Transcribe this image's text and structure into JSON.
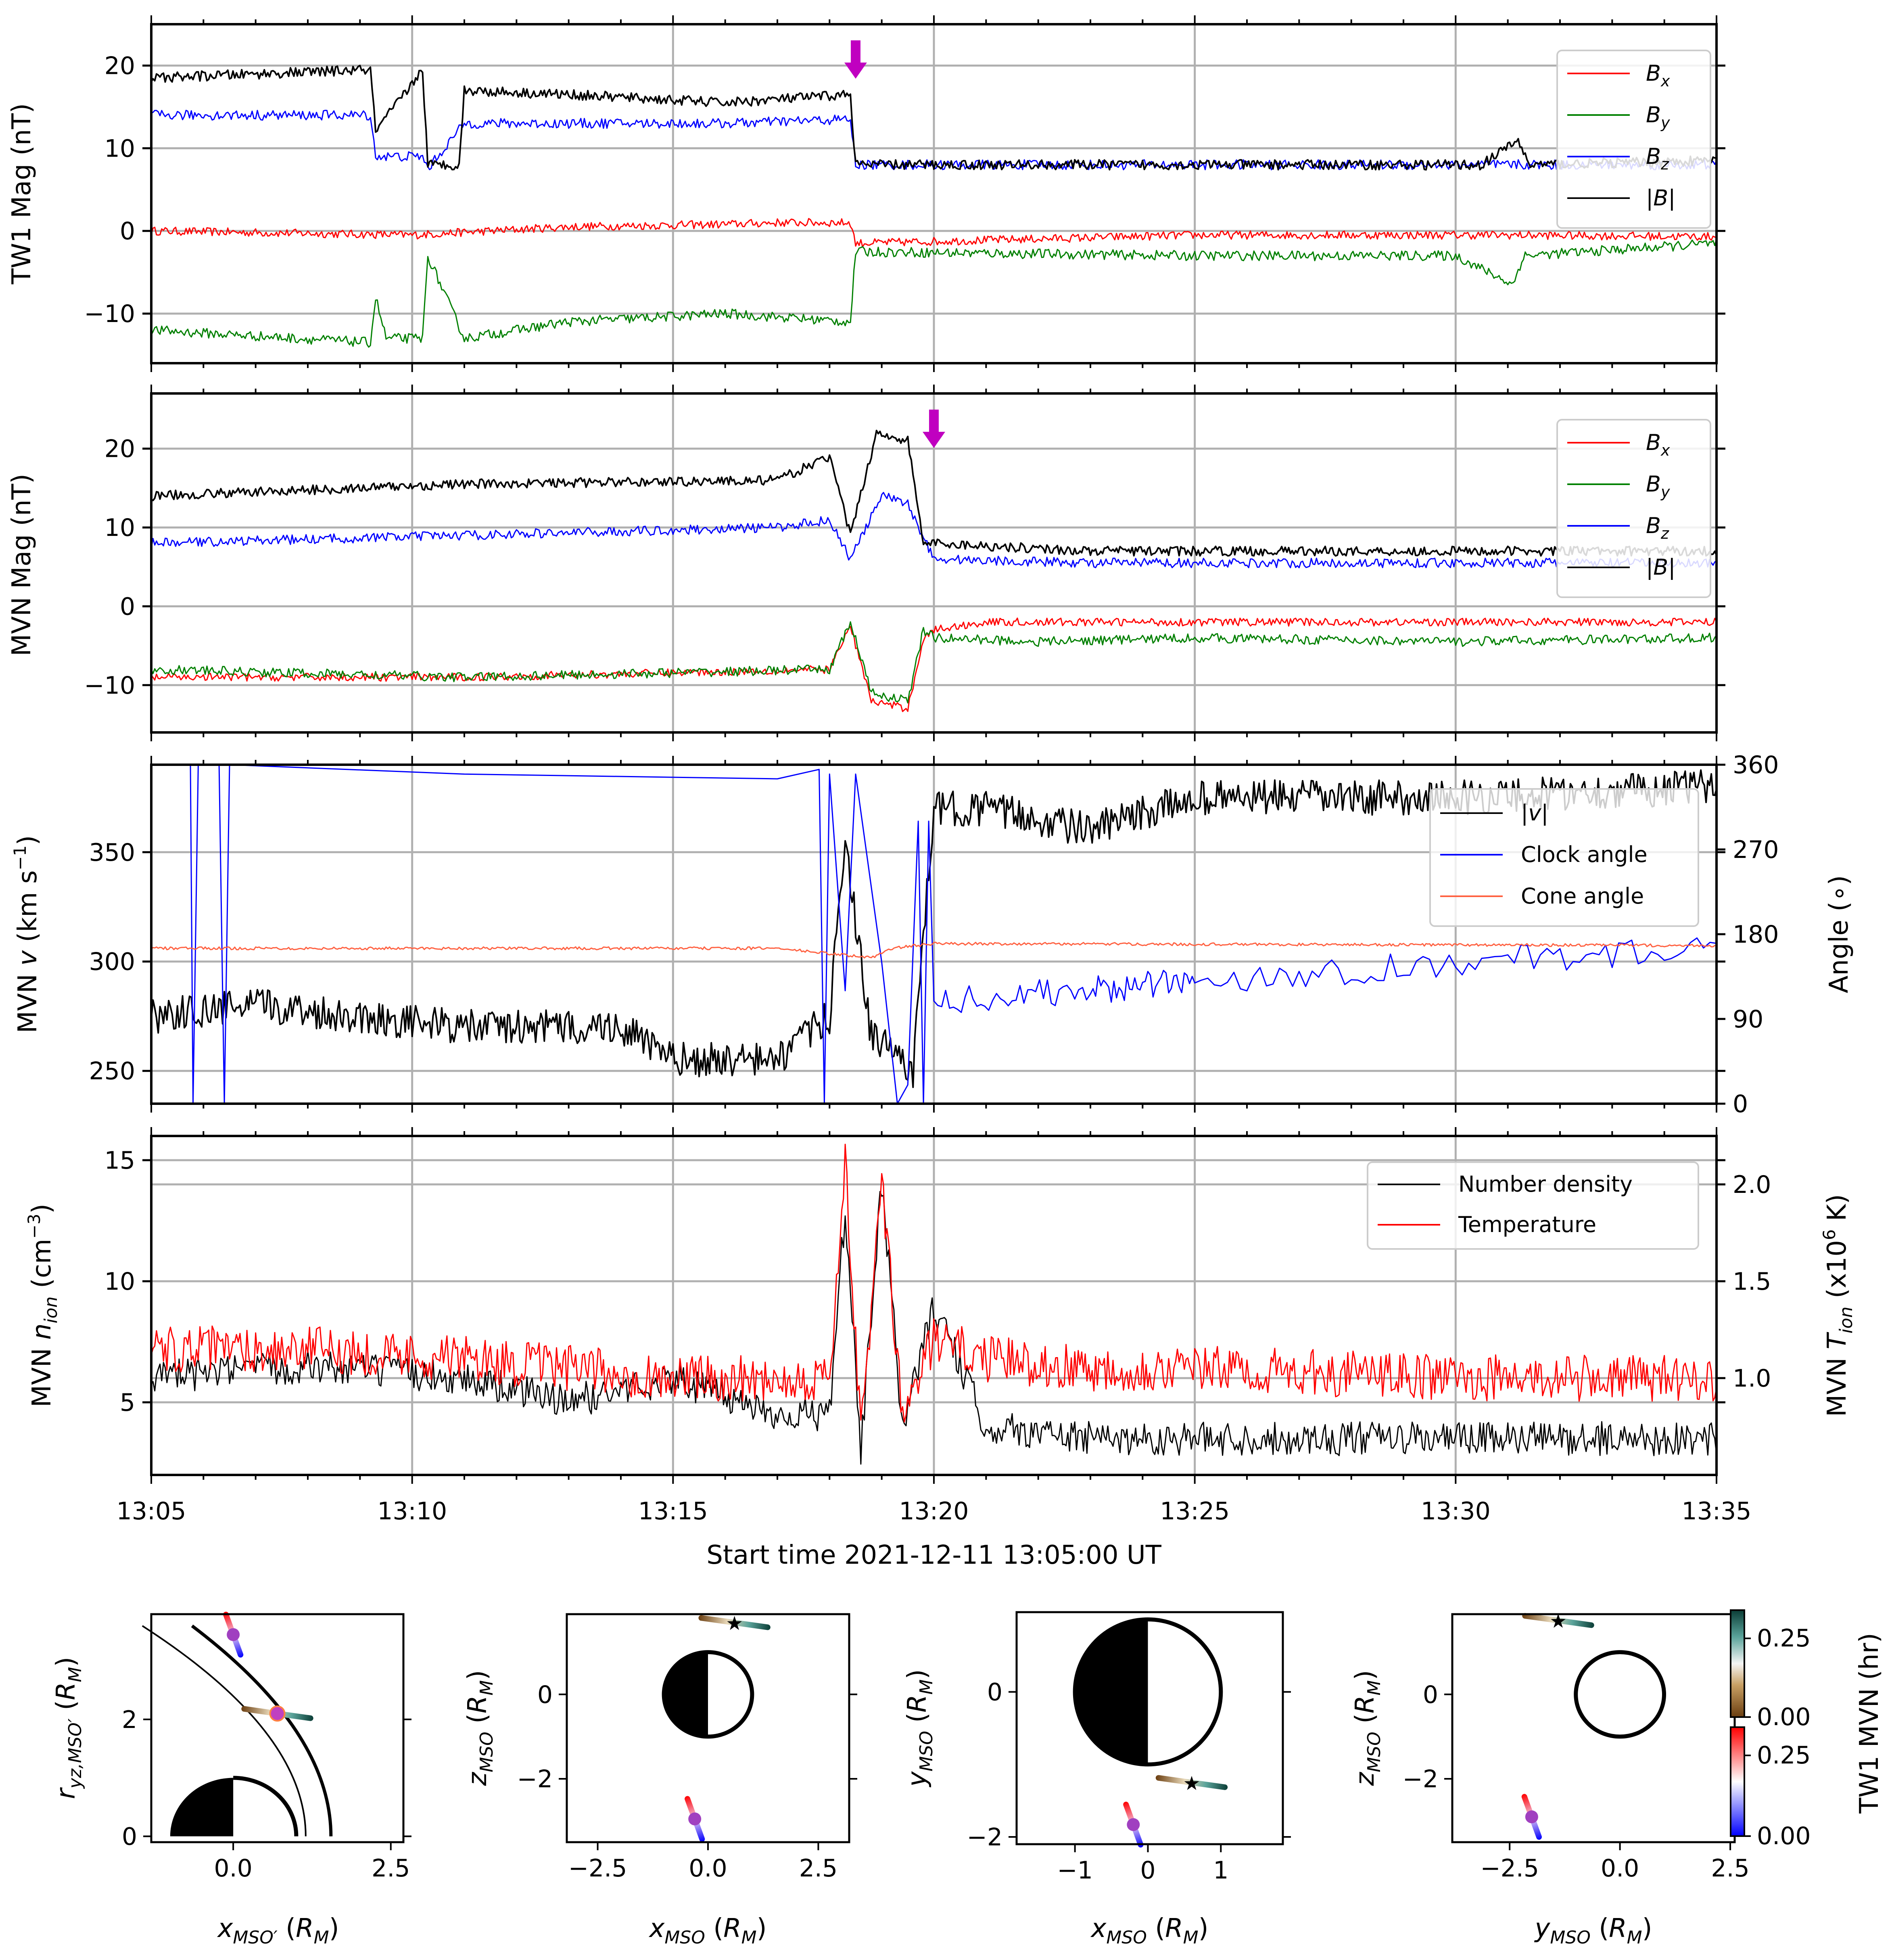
{
  "colors": {
    "bx": "#ff0000",
    "by": "#008000",
    "bz": "#0000ff",
    "bmag": "#000000",
    "speed": "#000000",
    "clock": "#0000ff",
    "cone": "#ff6040",
    "density": "#000000",
    "temperature": "#ff0000",
    "arrow": "#c000c0"
  },
  "chart_data": [
    {
      "type": "line",
      "panel": "tw1-mag",
      "ylabel": "TW1 Mag (nT)",
      "xlim": [
        0,
        30
      ],
      "ylim": [
        -16,
        25
      ],
      "xticks": [
        0,
        5,
        10,
        15,
        20,
        25,
        30
      ],
      "yticks": [
        20,
        10,
        0,
        -10
      ],
      "ytick_labels": [
        "20",
        "10",
        "0",
        "−10"
      ],
      "legend": [
        "B_x",
        "B_y",
        "B_z",
        "|B|"
      ],
      "legend_loc": "top-right",
      "arrow_at_minutes": 13.5,
      "series": [
        {
          "name": "Bx",
          "x": [
            0,
            5,
            8,
            11,
            12,
            13.4,
            13.5,
            20,
            26,
            30
          ],
          "y": [
            0,
            -0.5,
            0.5,
            0.8,
            1,
            1,
            -1.5,
            -0.5,
            -0.5,
            -0.7
          ]
        },
        {
          "name": "By",
          "x": [
            0,
            4.2,
            4.3,
            4.5,
            5.2,
            5.3,
            6,
            8,
            11,
            13.4,
            13.5,
            20,
            25,
            26.1,
            26.3,
            30
          ],
          "y": [
            -12,
            -13.5,
            -8,
            -13,
            -13,
            -3,
            -13,
            -11,
            -10,
            -11,
            -2.5,
            -3,
            -3,
            -6.5,
            -3,
            -1.5
          ]
        },
        {
          "name": "Bz",
          "x": [
            0,
            4.2,
            4.3,
            5.2,
            5.3,
            6,
            11,
            13.4,
            13.5,
            30
          ],
          "y": [
            14,
            14,
            9,
            9,
            7.5,
            13,
            13,
            13.5,
            8,
            8
          ]
        },
        {
          "name": "|B|",
          "x": [
            0,
            4.2,
            4.3,
            5.2,
            5.3,
            5.9,
            6,
            8,
            11,
            13.4,
            13.5,
            25.5,
            26.2,
            26.4,
            30
          ],
          "y": [
            18.5,
            19.5,
            12,
            19.5,
            8,
            8,
            17,
            16.5,
            15.5,
            16.5,
            8,
            8,
            11,
            8,
            8.5
          ]
        }
      ]
    },
    {
      "type": "line",
      "panel": "mvn-mag",
      "ylabel": "MVN Mag (nT)",
      "xlim": [
        0,
        30
      ],
      "ylim": [
        -16,
        27
      ],
      "yticks": [
        20,
        10,
        0,
        -10
      ],
      "ytick_labels": [
        "20",
        "10",
        "0",
        "−10"
      ],
      "legend": [
        "B_x",
        "B_y",
        "B_z",
        "|B|"
      ],
      "legend_loc": "top-right",
      "arrow_at_minutes": 15,
      "series": [
        {
          "name": "Bx",
          "x": [
            0,
            6,
            13,
            13.4,
            13.8,
            14.5,
            14.8,
            15,
            16,
            20,
            30
          ],
          "y": [
            -9,
            -9,
            -8,
            -2.5,
            -12,
            -13,
            -4,
            -3,
            -2,
            -2,
            -2
          ]
        },
        {
          "name": "By",
          "x": [
            0,
            6,
            13,
            13.4,
            13.8,
            14.5,
            14.8,
            15,
            17,
            20,
            25,
            30
          ],
          "y": [
            -8,
            -9,
            -8,
            -2,
            -11,
            -12,
            -3,
            -4,
            -4.5,
            -4,
            -4.5,
            -4
          ]
        },
        {
          "name": "Bz",
          "x": [
            0,
            6,
            12,
            13,
            13.4,
            14,
            14.5,
            15,
            18,
            20,
            30
          ],
          "y": [
            8,
            9,
            10,
            11,
            6,
            14,
            13,
            6,
            5.5,
            5.5,
            5.5
          ]
        },
        {
          "name": "|B|",
          "x": [
            0,
            6,
            12,
            13,
            13.4,
            13.9,
            14.5,
            14.8,
            15,
            18,
            20,
            30
          ],
          "y": [
            14,
            15.5,
            16,
            19,
            9,
            22,
            21,
            8,
            8,
            7,
            7,
            7
          ]
        }
      ]
    },
    {
      "type": "line",
      "panel": "mvn-velocity",
      "ylabel": "MVN v (km s⁻¹)",
      "ylabel_right": "Angle (∘)",
      "xlim": [
        0,
        30
      ],
      "ylim": [
        235,
        390
      ],
      "ylim_right": [
        0,
        360
      ],
      "yticks": [
        250,
        300,
        350
      ],
      "yticks_right": [
        0,
        90,
        180,
        270,
        360
      ],
      "legend": [
        "|v|",
        "Clock angle",
        "Cone angle"
      ],
      "legend_loc": "top-right",
      "series": [
        {
          "name": "|v|",
          "axis": "left",
          "x": [
            0,
            2,
            6,
            9,
            10,
            12,
            13,
            13.3,
            13.8,
            14.2,
            14.6,
            15,
            16,
            18,
            20,
            25,
            30
          ],
          "y": [
            275,
            280,
            270,
            270,
            255,
            255,
            275,
            355,
            265,
            260,
            250,
            370,
            370,
            360,
            375,
            375,
            380
          ]
        },
        {
          "name": "Clock angle",
          "axis": "right",
          "x": [
            0,
            0.75,
            0.8,
            0.9,
            1.3,
            1.4,
            1.5,
            6,
            12,
            12.8,
            12.9,
            13,
            13.3,
            13.5,
            14,
            14.3,
            14.5,
            14.7,
            14.8,
            14.9,
            15,
            18,
            20,
            25,
            30
          ],
          "y": [
            360,
            360,
            0,
            360,
            360,
            0,
            360,
            350,
            345,
            355,
            0,
            350,
            120,
            350,
            150,
            0,
            20,
            300,
            0,
            300,
            110,
            120,
            130,
            150,
            165
          ]
        },
        {
          "name": "Cone angle",
          "axis": "right",
          "x": [
            0,
            12,
            13.8,
            14.2,
            15,
            30
          ],
          "y": [
            165,
            165,
            155,
            165,
            170,
            168
          ]
        }
      ]
    },
    {
      "type": "line",
      "panel": "mvn-plasma",
      "ylabel": "MVN n_ion (cm⁻³)",
      "ylabel_right": "MVN T_ion (x10⁶ K)",
      "xlim": [
        0,
        30
      ],
      "ylim": [
        2,
        16
      ],
      "ylim_right": [
        0.5,
        2.25
      ],
      "yticks": [
        5,
        10,
        15
      ],
      "yticks_right": [
        1.0,
        1.5,
        2.0
      ],
      "ytick_labels_right": [
        "1.0",
        "1.5",
        "2.0"
      ],
      "legend": [
        "Number density",
        "Temperature"
      ],
      "legend_loc": "top-right",
      "series": [
        {
          "name": "Number density",
          "axis": "left",
          "x": [
            0,
            3,
            6,
            8,
            10,
            12,
            13,
            13.3,
            13.6,
            14,
            14.4,
            15,
            16,
            18,
            20,
            25,
            30
          ],
          "y": [
            6,
            6.5,
            6,
            5,
            6,
            4.5,
            4.5,
            13,
            3,
            14,
            4,
            9,
            4,
            3.5,
            3.5,
            3.5,
            3.5
          ]
        },
        {
          "name": "Temperature",
          "axis": "right",
          "x": [
            0,
            3,
            6,
            8,
            10,
            12,
            13,
            13.3,
            13.6,
            14,
            14.4,
            15,
            16,
            18,
            20,
            25,
            30
          ],
          "y": [
            1.15,
            1.15,
            1.1,
            1.05,
            1.0,
            1.0,
            1.0,
            2.1,
            0.7,
            2.0,
            0.8,
            1.2,
            1.1,
            1.05,
            1.05,
            1.0,
            1.0
          ]
        }
      ]
    },
    {
      "type": "scatter",
      "panel": "orbit-x-ryz",
      "xlabel": "x_MSO' (R_M)",
      "ylabel": "r_yz,MSO' (R_M)",
      "xlim": [
        -1.3,
        2.7
      ],
      "ylim": [
        -0.1,
        3.8
      ],
      "xticks": [
        0.0,
        2.5
      ],
      "xtick_labels": [
        "0.0",
        "2.5"
      ],
      "yticks": [
        0,
        2
      ],
      "ytick_labels": [
        "0",
        "2"
      ],
      "points": [
        {
          "name": "MVN",
          "x": 0.0,
          "y": 3.45
        },
        {
          "name": "TW1",
          "x": 0.7,
          "y": 2.1
        }
      ]
    },
    {
      "type": "scatter",
      "panel": "orbit-x-z",
      "xlabel": "x_MSO (R_M)",
      "ylabel": "z_MSO (R_M)",
      "xlim": [
        -3.2,
        3.2
      ],
      "ylim": [
        -3.5,
        1.9
      ],
      "xticks": [
        -2.5,
        0.0,
        2.5
      ],
      "xtick_labels": [
        "−2.5",
        "0.0",
        "2.5"
      ],
      "yticks": [
        0,
        -2
      ],
      "ytick_labels": [
        "0",
        "−2"
      ],
      "points": [
        {
          "name": "TW1",
          "x": 0.6,
          "y": 1.7
        },
        {
          "name": "MVN",
          "x": -0.3,
          "y": -2.95
        }
      ]
    },
    {
      "type": "scatter",
      "panel": "orbit-x-y",
      "xlabel": "x_MSO (R_M)",
      "ylabel": "y_MSO (R_M)",
      "xlim": [
        -1.8,
        1.85
      ],
      "ylim": [
        -2.1,
        1.1
      ],
      "xticks": [
        -1,
        0,
        1
      ],
      "xtick_labels": [
        "−1",
        "0",
        "1"
      ],
      "yticks": [
        0,
        -2
      ],
      "ytick_labels": [
        "0",
        "−2"
      ],
      "points": [
        {
          "name": "TW1",
          "x": 0.6,
          "y": -1.25
        },
        {
          "name": "MVN",
          "x": -0.2,
          "y": -1.83
        }
      ]
    },
    {
      "type": "scatter",
      "panel": "orbit-y-z",
      "xlabel": "y_MSO (R_M)",
      "ylabel": "z_MSO (R_M)",
      "xlim": [
        -3.8,
        2.6
      ],
      "ylim": [
        -3.5,
        1.9
      ],
      "xticks": [
        -2.5,
        0.0,
        2.5
      ],
      "xtick_labels": [
        "−2.5",
        "0.0",
        "2.5"
      ],
      "yticks": [
        0,
        -2
      ],
      "ytick_labels": [
        "0",
        "−2"
      ],
      "colorbar_label": "TW1 MVN (hr)",
      "colorbar_ticks": [
        "0.25",
        "0.00"
      ],
      "points": [
        {
          "name": "TW1",
          "x": -1.4,
          "y": 1.75
        },
        {
          "name": "MVN",
          "x": -2.0,
          "y": -2.9
        }
      ]
    }
  ],
  "time_axis": {
    "tick_labels": [
      "13:05",
      "13:10",
      "13:15",
      "13:20",
      "13:25",
      "13:30",
      "13:35"
    ],
    "label": "Start time 2021-12-11 13:05:00 UT"
  }
}
